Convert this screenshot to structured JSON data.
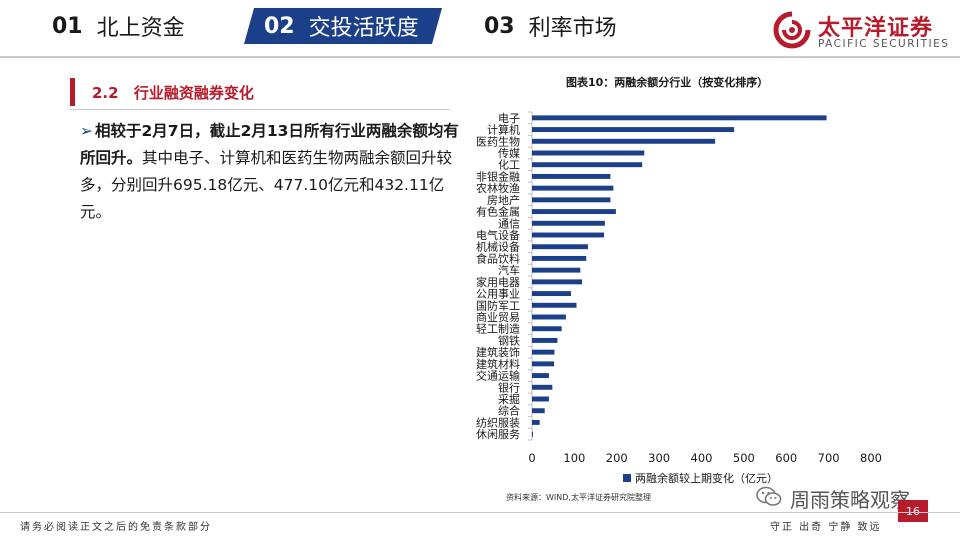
{
  "header": {
    "tabs": [
      {
        "num": "01",
        "label": "北上资金",
        "active": false
      },
      {
        "num": "02",
        "label": "交投活跃度",
        "active": true
      },
      {
        "num": "03",
        "label": "利率市场",
        "active": false
      }
    ],
    "logo_cn": "太平洋证券",
    "logo_en": "PACIFIC SECURITIES",
    "brand_color": "#b71c2c",
    "accent_color": "#1c3f8a"
  },
  "section": {
    "number": "2.2",
    "title": "行业融资融券变化"
  },
  "paragraph": {
    "bullet": "➢",
    "bold": "相较于2月7日，截止2月13日所有行业两融余额均有所回升。",
    "rest": "其中电子、计算机和医药生物两融余额回升较多，分别回升695.18亿元、477.10亿元和432.11亿元。"
  },
  "chart_title": "图表10：两融余额分行业（按变化排序）",
  "chart_data": {
    "type": "bar",
    "orientation": "horizontal",
    "categories": [
      "电子",
      "计算机",
      "医药生物",
      "传媒",
      "化工",
      "非银金融",
      "农林牧渔",
      "房地产",
      "有色金属",
      "通信",
      "电气设备",
      "机械设备",
      "食品饮料",
      "汽车",
      "家用电器",
      "公用事业",
      "国防军工",
      "商业贸易",
      "轻工制造",
      "钢铁",
      "建筑装饰",
      "建筑材料",
      "交通运输",
      "银行",
      "采掘",
      "综合",
      "纺织服装",
      "休闲服务"
    ],
    "series": [
      {
        "name": "两融余额较上期变化（亿元）",
        "values": [
          695.18,
          477.1,
          432.11,
          265,
          260,
          185,
          192,
          185,
          198,
          172,
          170,
          132,
          128,
          114,
          118,
          92,
          105,
          80,
          70,
          60,
          53,
          52,
          40,
          48,
          40,
          30,
          18,
          2
        ]
      }
    ],
    "xlim": [
      0,
      800
    ],
    "xticks": [
      0,
      100,
      200,
      300,
      400,
      500,
      600,
      700,
      800
    ],
    "bar_color": "#1c3f8a",
    "legend": "bottom-center",
    "grid": false
  },
  "source": "资料来源：WIND,太平洋证券研究院整理",
  "footer": {
    "wechat_name": "周雨策略观察",
    "page_number": "16",
    "disclaimer": "请务必阅读正文之后的免责条款部分",
    "motto": "守正 出奇 宁静 致远"
  }
}
